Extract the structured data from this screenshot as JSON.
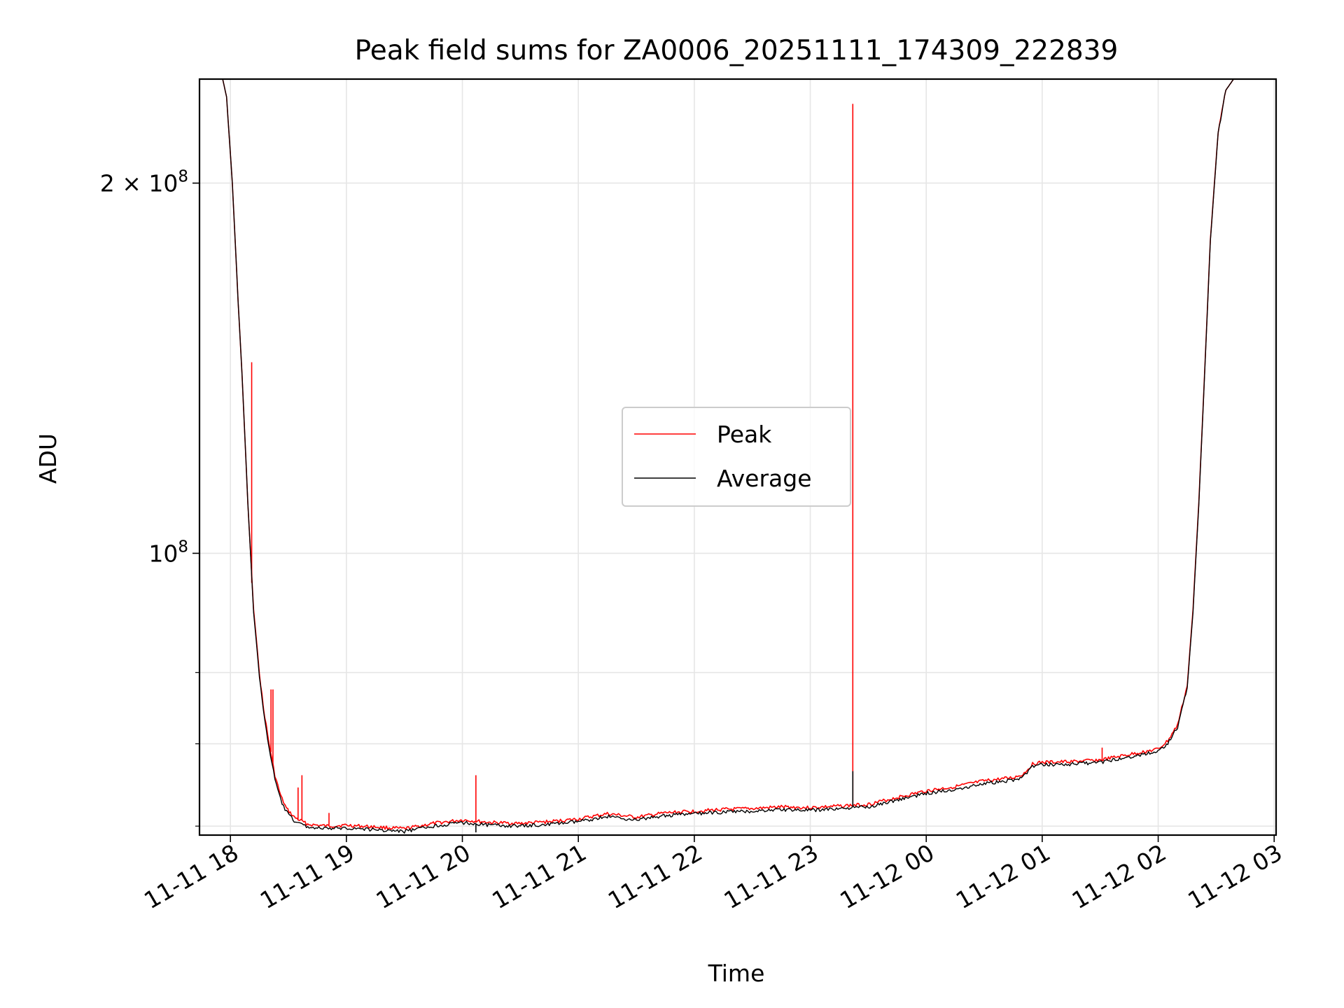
{
  "chart_data": {
    "type": "line",
    "title": "Peak field sums for ZA0006_20251111_174309_222839",
    "xlabel": "Time",
    "ylabel": "ADU",
    "xlim": [
      "2025-11-11 17:44",
      "2025-11-12 03:01"
    ],
    "ylim": [
      59000000,
      243000000
    ],
    "yscale": "log",
    "grid": true,
    "legend_position": "center",
    "x_ticks": [
      {
        "t": "2025-11-11 18:00",
        "label": "11-11 18"
      },
      {
        "t": "2025-11-11 19:00",
        "label": "11-11 19"
      },
      {
        "t": "2025-11-11 20:00",
        "label": "11-11 20"
      },
      {
        "t": "2025-11-11 21:00",
        "label": "11-11 21"
      },
      {
        "t": "2025-11-11 22:00",
        "label": "11-11 22"
      },
      {
        "t": "2025-11-11 23:00",
        "label": "11-11 23"
      },
      {
        "t": "2025-11-12 00:00",
        "label": "11-12 00"
      },
      {
        "t": "2025-11-12 01:00",
        "label": "11-12 01"
      },
      {
        "t": "2025-11-12 02:00",
        "label": "11-12 02"
      },
      {
        "t": "2025-11-12 03:00",
        "label": "11-12 03"
      }
    ],
    "y_major_ticks": [
      {
        "value": 100000000,
        "base": "10",
        "exp": "8"
      },
      {
        "value": 200000000,
        "base": "2 × 10",
        "exp": "8"
      }
    ],
    "y_minor_ticks": [
      60000000,
      70000000,
      80000000
    ],
    "colors": {
      "peak": "#ff0000",
      "average": "#000000",
      "grid": "#e6e6e6"
    },
    "series": [
      {
        "name": "Peak",
        "color": "#ff0000",
        "points": [
          [
            "2025-11-11 17:56",
            243000000
          ],
          [
            "2025-11-11 17:58",
            235000000
          ],
          [
            "2025-11-11 18:01",
            200000000
          ],
          [
            "2025-11-11 18:04",
            160000000
          ],
          [
            "2025-11-11 18:06",
            140000000
          ],
          [
            "2025-11-11 18:09",
            110000000
          ],
          [
            "2025-11-11 18:12",
            90000000
          ],
          [
            "2025-11-11 18:15",
            80000000
          ],
          [
            "2025-11-11 18:17",
            75000000
          ],
          [
            "2025-11-11 18:20",
            70000000
          ],
          [
            "2025-11-11 18:23",
            66000000
          ],
          [
            "2025-11-11 18:26",
            63500000
          ],
          [
            "2025-11-11 18:29",
            62000000
          ],
          [
            "2025-11-11 18:33",
            61000000
          ],
          [
            "2025-11-11 18:40",
            60200000
          ],
          [
            "2025-11-11 18:50",
            60000000
          ],
          [
            "2025-11-11 19:00",
            60100000
          ],
          [
            "2025-11-11 19:15",
            59900000
          ],
          [
            "2025-11-11 19:30",
            59700000
          ],
          [
            "2025-11-11 19:45",
            60300000
          ],
          [
            "2025-11-11 20:00",
            60700000
          ],
          [
            "2025-11-11 20:15",
            60400000
          ],
          [
            "2025-11-11 20:30",
            60300000
          ],
          [
            "2025-11-11 20:45",
            60500000
          ],
          [
            "2025-11-11 21:00",
            60800000
          ],
          [
            "2025-11-11 21:15",
            61400000
          ],
          [
            "2025-11-11 21:30",
            61000000
          ],
          [
            "2025-11-11 21:45",
            61500000
          ],
          [
            "2025-11-11 22:00",
            61700000
          ],
          [
            "2025-11-11 22:15",
            61900000
          ],
          [
            "2025-11-11 22:30",
            62000000
          ],
          [
            "2025-11-11 22:45",
            62200000
          ],
          [
            "2025-11-11 23:00",
            62100000
          ],
          [
            "2025-11-11 23:15",
            62300000
          ],
          [
            "2025-11-11 23:30",
            62500000
          ],
          [
            "2025-11-11 23:45",
            63300000
          ],
          [
            "2025-11-12 00:00",
            64100000
          ],
          [
            "2025-11-12 00:15",
            64600000
          ],
          [
            "2025-11-12 00:30",
            65300000
          ],
          [
            "2025-11-12 00:45",
            65700000
          ],
          [
            "2025-11-12 00:50",
            66100000
          ],
          [
            "2025-11-12 00:55",
            67400000
          ],
          [
            "2025-11-12 01:00",
            67600000
          ],
          [
            "2025-11-12 01:15",
            67700000
          ],
          [
            "2025-11-12 01:30",
            67900000
          ],
          [
            "2025-11-12 01:45",
            68600000
          ],
          [
            "2025-11-12 02:00",
            69300000
          ],
          [
            "2025-11-12 02:05",
            70400000
          ],
          [
            "2025-11-12 02:10",
            72500000
          ],
          [
            "2025-11-12 02:15",
            78000000
          ],
          [
            "2025-11-12 02:18",
            90000000
          ],
          [
            "2025-11-12 02:21",
            110000000
          ],
          [
            "2025-11-12 02:24",
            140000000
          ],
          [
            "2025-11-12 02:27",
            180000000
          ],
          [
            "2025-11-12 02:31",
            220000000
          ],
          [
            "2025-11-12 02:35",
            238000000
          ],
          [
            "2025-11-12 02:39",
            243000000
          ],
          [
            "2025-11-12 03:01",
            243000000
          ]
        ],
        "spikes": [
          [
            "2025-11-11 18:11",
            143000000
          ],
          [
            "2025-11-11 18:21",
            77500000
          ],
          [
            "2025-11-11 18:22",
            77500000
          ],
          [
            "2025-11-11 18:35",
            64500000
          ],
          [
            "2025-11-11 18:37",
            66000000
          ],
          [
            "2025-11-11 18:51",
            61500000
          ],
          [
            "2025-11-11 20:07",
            66000000
          ],
          [
            "2025-11-11 23:22",
            232000000
          ],
          [
            "2025-11-12 01:31",
            69500000
          ]
        ]
      },
      {
        "name": "Average",
        "color": "#000000",
        "points": [
          [
            "2025-11-11 17:56",
            243000000
          ],
          [
            "2025-11-11 17:58",
            235000000
          ],
          [
            "2025-11-11 18:01",
            200000000
          ],
          [
            "2025-11-11 18:04",
            160000000
          ],
          [
            "2025-11-11 18:06",
            140000000
          ],
          [
            "2025-11-11 18:09",
            110000000
          ],
          [
            "2025-11-11 18:12",
            89500000
          ],
          [
            "2025-11-11 18:15",
            79500000
          ],
          [
            "2025-11-11 18:17",
            74500000
          ],
          [
            "2025-11-11 18:20",
            69500000
          ],
          [
            "2025-11-11 18:23",
            65500000
          ],
          [
            "2025-11-11 18:26",
            63000000
          ],
          [
            "2025-11-11 18:29",
            61600000
          ],
          [
            "2025-11-11 18:33",
            60600000
          ],
          [
            "2025-11-11 18:40",
            59900000
          ],
          [
            "2025-11-11 18:50",
            59700000
          ],
          [
            "2025-11-11 19:00",
            59800000
          ],
          [
            "2025-11-11 19:15",
            59600000
          ],
          [
            "2025-11-11 19:30",
            59400000
          ],
          [
            "2025-11-11 19:45",
            60000000
          ],
          [
            "2025-11-11 20:00",
            60400000
          ],
          [
            "2025-11-11 20:15",
            60100000
          ],
          [
            "2025-11-11 20:30",
            60000000
          ],
          [
            "2025-11-11 20:45",
            60200000
          ],
          [
            "2025-11-11 21:00",
            60500000
          ],
          [
            "2025-11-11 21:15",
            61100000
          ],
          [
            "2025-11-11 21:30",
            60700000
          ],
          [
            "2025-11-11 21:45",
            61200000
          ],
          [
            "2025-11-11 22:00",
            61400000
          ],
          [
            "2025-11-11 22:15",
            61600000
          ],
          [
            "2025-11-11 22:30",
            61700000
          ],
          [
            "2025-11-11 22:45",
            61900000
          ],
          [
            "2025-11-11 23:00",
            61800000
          ],
          [
            "2025-11-11 23:15",
            62000000
          ],
          [
            "2025-11-11 23:30",
            62200000
          ],
          [
            "2025-11-11 23:45",
            63000000
          ],
          [
            "2025-11-12 00:00",
            63800000
          ],
          [
            "2025-11-12 00:15",
            64300000
          ],
          [
            "2025-11-12 00:30",
            65000000
          ],
          [
            "2025-11-12 00:45",
            65400000
          ],
          [
            "2025-11-12 00:50",
            65800000
          ],
          [
            "2025-11-12 00:55",
            67100000
          ],
          [
            "2025-11-12 01:00",
            67300000
          ],
          [
            "2025-11-12 01:15",
            67400000
          ],
          [
            "2025-11-12 01:30",
            67600000
          ],
          [
            "2025-11-12 01:45",
            68300000
          ],
          [
            "2025-11-12 02:00",
            69000000
          ],
          [
            "2025-11-12 02:05",
            70100000
          ],
          [
            "2025-11-12 02:10",
            72200000
          ],
          [
            "2025-11-12 02:15",
            77700000
          ],
          [
            "2025-11-12 02:18",
            89500000
          ],
          [
            "2025-11-12 02:21",
            109500000
          ],
          [
            "2025-11-12 02:24",
            139500000
          ],
          [
            "2025-11-12 02:27",
            179500000
          ],
          [
            "2025-11-12 02:31",
            219500000
          ],
          [
            "2025-11-12 02:35",
            238000000
          ],
          [
            "2025-11-12 02:39",
            243000000
          ],
          [
            "2025-11-12 03:01",
            243000000
          ]
        ],
        "spikes": [
          [
            "2025-11-11 20:07",
            59300000
          ],
          [
            "2025-11-11 23:22",
            66500000
          ]
        ]
      }
    ]
  }
}
